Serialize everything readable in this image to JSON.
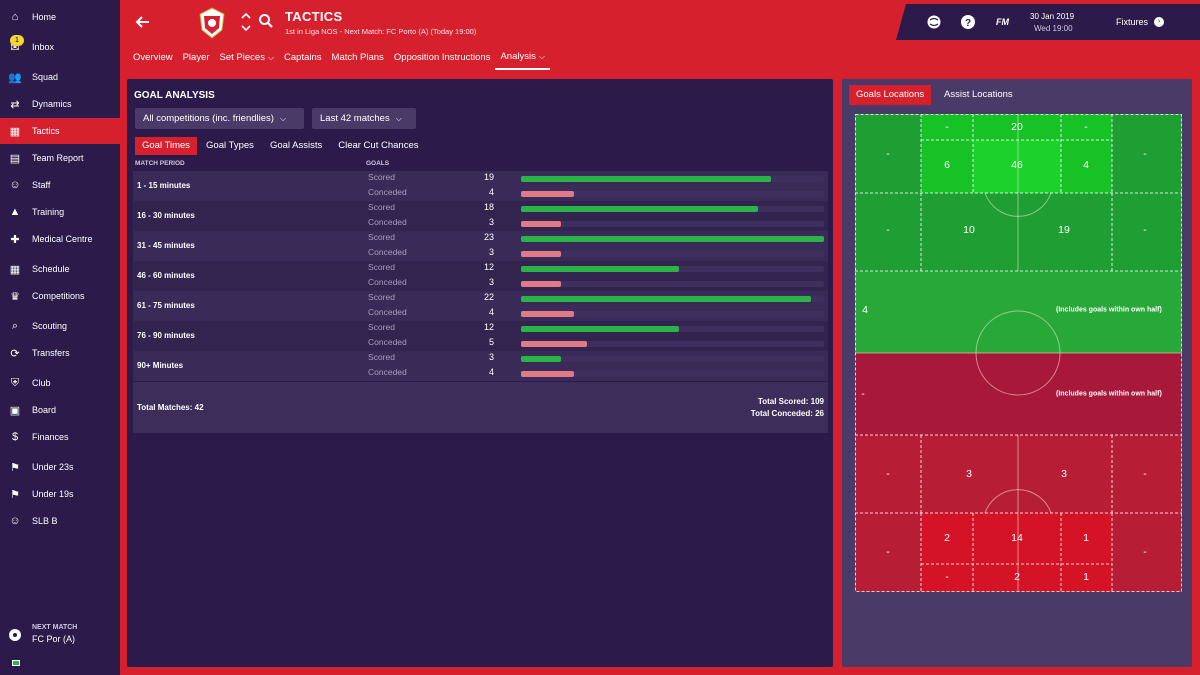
{
  "sidebar": {
    "items": [
      {
        "label": "Home",
        "icon": "home-icon"
      },
      {
        "label": "Inbox",
        "icon": "inbox-icon"
      },
      {
        "label": "Squad",
        "icon": "squad-icon"
      },
      {
        "label": "Dynamics",
        "icon": "dynamics-icon"
      },
      {
        "label": "Tactics",
        "icon": "tactics-icon"
      },
      {
        "label": "Team Report",
        "icon": "team-report-icon"
      },
      {
        "label": "Staff",
        "icon": "staff-icon"
      },
      {
        "label": "Training",
        "icon": "training-icon"
      },
      {
        "label": "Medical Centre",
        "icon": "medical-icon"
      },
      {
        "label": "Schedule",
        "icon": "calendar-icon"
      },
      {
        "label": "Competitions",
        "icon": "trophy-icon"
      },
      {
        "label": "Scouting",
        "icon": "scouting-icon"
      },
      {
        "label": "Transfers",
        "icon": "transfers-icon"
      },
      {
        "label": "Club",
        "icon": "club-shield-icon"
      },
      {
        "label": "Board",
        "icon": "board-icon"
      },
      {
        "label": "Finances",
        "icon": "finances-icon"
      },
      {
        "label": "Under 23s",
        "icon": "under23-icon"
      },
      {
        "label": "Under 19s",
        "icon": "under19-icon"
      },
      {
        "label": "SLB B",
        "icon": "reserve-icon"
      }
    ],
    "active_index": 4,
    "inbox_badge": "1",
    "next_match_label": "NEXT MATCH",
    "next_match_value": "FC Por (A)"
  },
  "header": {
    "title": "TACTICS",
    "subtitle": "1st in Liga NOS - Next Match: FC Porto (A) (Today 19:00)",
    "tabs": [
      {
        "label": "Overview",
        "dropdown": false
      },
      {
        "label": "Player",
        "dropdown": false
      },
      {
        "label": "Set Pieces",
        "dropdown": true
      },
      {
        "label": "Captains",
        "dropdown": false
      },
      {
        "label": "Match Plans",
        "dropdown": false
      },
      {
        "label": "Opposition Instructions",
        "dropdown": false
      },
      {
        "label": "Analysis",
        "dropdown": true
      }
    ],
    "active_tab": 6
  },
  "topbar": {
    "fm_label": "FM",
    "date": "30 Jan 2019",
    "time": "Wed 19:00",
    "fixtures_label": "Fixtures"
  },
  "goal_analysis": {
    "title": "GOAL ANALYSIS",
    "competition_filter": "All competitions (inc. friendlies)",
    "matches_filter": "Last 42 matches",
    "subtabs": [
      "Goal Times",
      "Goal Types",
      "Goal Assists",
      "Clear Cut Chances"
    ],
    "active_subtab": 0,
    "col_period": "MATCH PERIOD",
    "col_goals": "GOALS",
    "scored_label": "Scored",
    "conceded_label": "Conceded",
    "bar_max": 23,
    "periods": [
      {
        "label": "1 - 15 minutes",
        "scored": 19,
        "conceded": 4
      },
      {
        "label": "16 - 30 minutes",
        "scored": 18,
        "conceded": 3
      },
      {
        "label": "31 - 45 minutes",
        "scored": 23,
        "conceded": 3
      },
      {
        "label": "46 - 60 minutes",
        "scored": 12,
        "conceded": 3
      },
      {
        "label": "61 - 75 minutes",
        "scored": 22,
        "conceded": 4
      },
      {
        "label": "76 - 90 minutes",
        "scored": 12,
        "conceded": 5
      },
      {
        "label": "90+ Minutes",
        "scored": 3,
        "conceded": 4
      }
    ],
    "total_matches": "Total Matches: 42",
    "total_scored": "Total Scored: 109",
    "total_conceded": "Total Conceded: 26"
  },
  "locations": {
    "tabs": [
      "Goals Locations",
      "Assist Locations"
    ],
    "active_tab": 0,
    "colors": {
      "scored_dark": "#1e9e33",
      "scored_mid": "#28a838",
      "scored_bright": "#17c226",
      "conceded_dark": "#b81d36",
      "conceded_bright": "#d41426"
    },
    "zones": {
      "top_left": "-",
      "top_6yard_left": "-",
      "top_6yard_center": "20",
      "top_6yard_right": "-",
      "top_right": "-",
      "top_box_left": "6",
      "top_box_center": "46",
      "top_box_right": "4",
      "top_outside_left": "-",
      "top_outside_center_left": "10",
      "top_outside_center_right": "19",
      "top_outside_right": "-",
      "own_half_scored": "4",
      "own_half_note": "(Includes goals within own half)",
      "opp_half_conceded": "-",
      "opp_half_note": "(Includes goals within own half)",
      "bot_outside_left": "-",
      "bot_outside_center_left": "3",
      "bot_outside_center_right": "3",
      "bot_outside_right": "-",
      "bot_left": "-",
      "bot_box_left": "2",
      "bot_box_center": "14",
      "bot_box_right": "1",
      "bot_right": "-",
      "bot_6yard_left": "-",
      "bot_6yard_center": "2",
      "bot_6yard_right": "1"
    }
  }
}
